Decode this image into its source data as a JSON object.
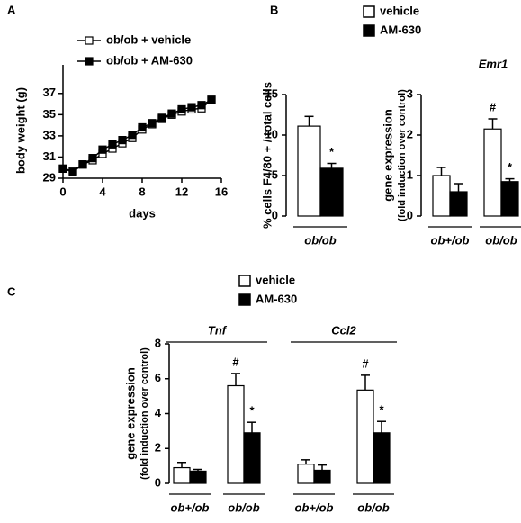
{
  "chart_data": [
    {
      "panel": "A",
      "type": "line",
      "xlabel": "days",
      "ylabel": "body weight (g)",
      "x": [
        0,
        1,
        2,
        3,
        4,
        5,
        6,
        7,
        8,
        9,
        10,
        11,
        12,
        13,
        14,
        15
      ],
      "series": [
        {
          "name": "ob/ob + vehicle",
          "color": "#ffffff",
          "values": [
            29.9,
            29.7,
            30.3,
            30.7,
            31.3,
            31.8,
            32.3,
            32.8,
            33.6,
            34.1,
            34.6,
            35.0,
            35.3,
            35.5,
            35.6,
            36.4
          ]
        },
        {
          "name": "ob/ob + AM-630",
          "color": "#000000",
          "values": [
            29.9,
            29.6,
            30.3,
            30.9,
            31.7,
            32.2,
            32.6,
            33.1,
            33.8,
            34.2,
            34.7,
            35.1,
            35.5,
            35.7,
            35.9,
            36.4
          ]
        }
      ],
      "xlim": [
        0,
        16
      ],
      "xticks": [
        0,
        4,
        8,
        12,
        16
      ],
      "ylim": [
        29,
        38
      ],
      "yticks": [
        29,
        31,
        33,
        35,
        37
      ],
      "show_legend": true
    },
    {
      "panel": "B",
      "type": "bar",
      "ylabel": "% cells F4/80 + / total cells",
      "categories": [
        "ob/ob"
      ],
      "series": [
        {
          "name": "vehicle",
          "color": "#ffffff",
          "values": [
            11.1
          ],
          "errors": [
            1.2
          ],
          "marks": [
            null
          ]
        },
        {
          "name": "AM-630",
          "color": "#000000",
          "values": [
            5.9
          ],
          "errors": [
            0.6
          ],
          "marks": [
            "*"
          ]
        }
      ],
      "ylim": [
        0,
        15
      ],
      "yticks": [
        0,
        5,
        10,
        15
      ],
      "show_legend": true
    },
    {
      "type": "bar",
      "title": "Emr1",
      "ylabel": "gene expression",
      "ylabel_note": "(fold induction over control)",
      "categories": [
        "ob+/ob",
        "ob/ob"
      ],
      "series": [
        {
          "name": "vehicle",
          "color": "#ffffff",
          "values": [
            1.0,
            2.15
          ],
          "errors": [
            0.2,
            0.25
          ],
          "marks": [
            null,
            "#"
          ]
        },
        {
          "name": "AM-630",
          "color": "#000000",
          "values": [
            0.6,
            0.85
          ],
          "errors": [
            0.2,
            0.07
          ],
          "marks": [
            null,
            "*"
          ]
        }
      ],
      "ylim": [
        0,
        3
      ],
      "yticks": [
        0,
        1,
        2,
        3
      ],
      "show_legend": false
    },
    {
      "panel": "C",
      "type": "bar",
      "ylabel": "gene expression",
      "ylabel_note": "(fold induction over control)",
      "categories": [
        "ob+/ob",
        "ob/ob",
        "ob+/ob",
        "ob/ob"
      ],
      "groups": [
        {
          "title": "Tnf",
          "size": 2
        },
        {
          "title": "Ccl2",
          "size": 2
        }
      ],
      "series": [
        {
          "name": "vehicle",
          "color": "#ffffff",
          "values": [
            0.9,
            5.6,
            1.1,
            5.35
          ],
          "errors": [
            0.3,
            0.7,
            0.25,
            0.85
          ],
          "marks": [
            null,
            "#",
            null,
            "#"
          ]
        },
        {
          "name": "AM-630",
          "color": "#000000",
          "values": [
            0.7,
            2.9,
            0.75,
            2.9
          ],
          "errors": [
            0.1,
            0.6,
            0.3,
            0.65
          ],
          "marks": [
            null,
            "*",
            null,
            "*"
          ]
        }
      ],
      "ylim": [
        0,
        8
      ],
      "yticks": [
        0,
        2,
        4,
        6,
        8
      ],
      "show_legend": true
    }
  ]
}
